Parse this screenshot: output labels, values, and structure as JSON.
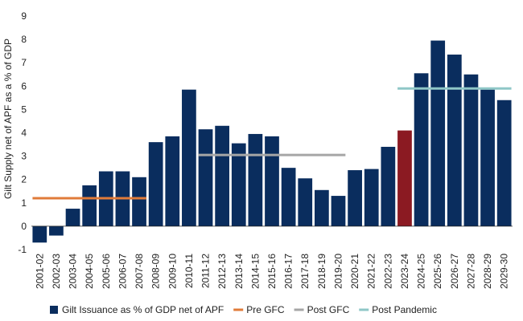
{
  "chart_data": {
    "type": "bar",
    "title": "",
    "xlabel": "",
    "ylabel": "Gilt Supply net of APF as a % of GDP",
    "ylim": [
      -1,
      9
    ],
    "yticks": [
      -1,
      0,
      1,
      2,
      3,
      4,
      5,
      6,
      7,
      8,
      9
    ],
    "grid": false,
    "legend_position": "bottom",
    "categories": [
      "2001-02",
      "2002-03",
      "2003-04",
      "2004-05",
      "2005-06",
      "2006-07",
      "2007-08",
      "2008-09",
      "2009-10",
      "2010-11",
      "2011-12",
      "2012-13",
      "2013-14",
      "2014-15",
      "2015-16",
      "2016-17",
      "2017-18",
      "2018-19",
      "2019-20",
      "2020-21",
      "2021-22",
      "2022-23",
      "2023-24",
      "2024-25",
      "2025-26",
      "2026-27",
      "2027-28",
      "2028-29",
      "2029-30"
    ],
    "series": [
      {
        "name": "Gilt Issuance as % of GDP net of APF",
        "color": "#0a2d5e",
        "highlight_color": "#8b1a22",
        "highlight_category": "2023-24",
        "values": [
          -0.7,
          -0.4,
          0.75,
          1.75,
          2.35,
          2.35,
          2.1,
          3.6,
          3.85,
          5.85,
          4.15,
          4.3,
          3.55,
          3.95,
          3.85,
          2.5,
          2.05,
          1.55,
          1.3,
          2.4,
          2.45,
          3.4,
          4.1,
          6.55,
          7.95,
          7.35,
          6.5,
          5.85,
          5.4
        ]
      }
    ],
    "reference_lines": [
      {
        "name": "Pre GFC",
        "color": "#e07b39",
        "value": 1.2,
        "from": "2001-02",
        "to": "2007-08"
      },
      {
        "name": "Post GFC",
        "color": "#a6a6a6",
        "value": 3.05,
        "from": "2011-12",
        "to": "2019-20"
      },
      {
        "name": "Post Pandemic",
        "color": "#8fc7c7",
        "value": 5.9,
        "from": "2023-24",
        "to": "2029-30"
      }
    ]
  }
}
